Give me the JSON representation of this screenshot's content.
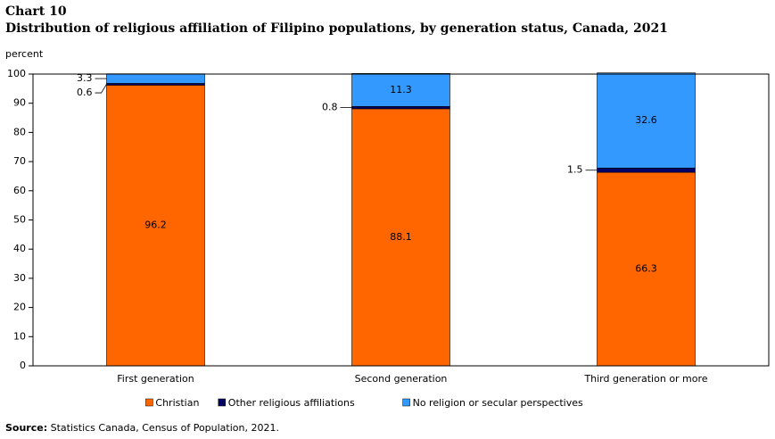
{
  "chart_data": {
    "type": "stacked_bar",
    "title": "Chart 10",
    "subtitle": "Distribution of religious affiliation of Filipino populations, by generation status, Canada, 2021",
    "y_label": "percent",
    "categories": [
      "First generation",
      "Second generation",
      "Third generation or more"
    ],
    "series": [
      {
        "name": "Christian",
        "color": "#ff6600",
        "values": [
          96.2,
          88.1,
          66.3
        ]
      },
      {
        "name": "Other religious affiliations",
        "color": "#000066",
        "values": [
          0.6,
          0.8,
          1.5
        ]
      },
      {
        "name": "No religion or secular perspectives",
        "color": "#3399ff",
        "values": [
          3.3,
          11.3,
          32.6
        ]
      }
    ],
    "ylim": [
      0,
      100
    ],
    "yticks": [
      0,
      10,
      20,
      30,
      40,
      50,
      60,
      70,
      80,
      90,
      100
    ],
    "grid": false,
    "legend": "bottom",
    "source_label": "Source:",
    "source": "Statistics Canada, Census of Population, 2021."
  }
}
